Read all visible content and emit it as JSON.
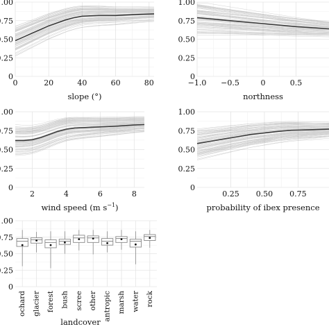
{
  "chart_data": [
    {
      "type": "line",
      "xlabel": "slope (°)",
      "ylabel": "",
      "xlim": [
        0,
        83
      ],
      "ylim": [
        0,
        1
      ],
      "xticks": [
        "0",
        "20",
        "40",
        "60",
        "80"
      ],
      "yticks": [
        "0",
        "0.25",
        "0.50",
        "0.75",
        "1.00"
      ],
      "grid": true,
      "series": [
        {
          "x": [
            0,
            5,
            10,
            15,
            20,
            25,
            30,
            35,
            40,
            45,
            50,
            55,
            60,
            65,
            70,
            75,
            83
          ],
          "y": [
            0.48,
            0.53,
            0.58,
            0.63,
            0.68,
            0.72,
            0.76,
            0.79,
            0.81,
            0.815,
            0.82,
            0.82,
            0.82,
            0.825,
            0.83,
            0.835,
            0.84
          ]
        }
      ]
    },
    {
      "type": "line",
      "xlabel": "northness",
      "ylabel": "",
      "xlim": [
        -1,
        1
      ],
      "ylim": [
        0,
        1
      ],
      "xticks": [
        "−1.0",
        "−0.5",
        "0",
        "0.5"
      ],
      "yticks": [
        "0",
        "0.25",
        "0.50",
        "0.75",
        "1.00"
      ],
      "grid": true,
      "series": [
        {
          "x": [
            -1,
            -0.75,
            -0.5,
            -0.25,
            0,
            0.25,
            0.5,
            0.75,
            1
          ],
          "y": [
            0.79,
            0.77,
            0.75,
            0.73,
            0.71,
            0.69,
            0.67,
            0.655,
            0.64
          ]
        }
      ]
    },
    {
      "type": "line",
      "xlabel": "wind speed (m s",
      "xlabel_sup": "−1",
      "xlabel_end": ")",
      "ylabel": "",
      "xlim": [
        1,
        8.6
      ],
      "ylim": [
        0,
        1
      ],
      "xticks": [
        "2",
        "4",
        "6",
        "8"
      ],
      "yticks": [
        "0",
        "0.25",
        "0.50",
        "0.75",
        "1.00"
      ],
      "grid": true,
      "series": [
        {
          "x": [
            1,
            1.5,
            2,
            2.5,
            3,
            3.5,
            4,
            4.5,
            5,
            6,
            7,
            8,
            8.6
          ],
          "y": [
            0.62,
            0.62,
            0.63,
            0.66,
            0.7,
            0.74,
            0.77,
            0.785,
            0.79,
            0.8,
            0.81,
            0.825,
            0.83
          ]
        }
      ]
    },
    {
      "type": "line",
      "xlabel": "probability of ibex presence",
      "ylabel": "",
      "xlim": [
        0.0,
        0.98
      ],
      "ylim": [
        0,
        1
      ],
      "xticks": [
        "0.25",
        "0.50",
        "0.75"
      ],
      "yticks": [
        "0",
        "0.25",
        "0.50",
        "0.75",
        "1.00"
      ],
      "grid": true,
      "series": [
        {
          "x": [
            0.0,
            0.1,
            0.2,
            0.3,
            0.4,
            0.5,
            0.6,
            0.7,
            0.8,
            0.9,
            0.98
          ],
          "y": [
            0.58,
            0.61,
            0.64,
            0.67,
            0.7,
            0.72,
            0.74,
            0.755,
            0.76,
            0.765,
            0.77
          ]
        }
      ]
    },
    {
      "type": "box",
      "xlabel": "landcover",
      "ylabel": "",
      "ylim": [
        0,
        1
      ],
      "yticks": [
        "0",
        "0.25",
        "0.50",
        "0.75",
        "1.00"
      ],
      "grid": true,
      "categories": [
        "ochard",
        "glacier",
        "forest",
        "bush",
        "scree",
        "other",
        "antropic",
        "marsh",
        "water",
        "rock"
      ],
      "boxes": [
        {
          "min": 0.31,
          "q1": 0.61,
          "median": 0.69,
          "q3": 0.73,
          "max": 0.86,
          "mean": 0.63
        },
        {
          "min": 0.52,
          "q1": 0.66,
          "median": 0.71,
          "q3": 0.74,
          "max": 0.83,
          "mean": 0.7
        },
        {
          "min": 0.28,
          "q1": 0.59,
          "median": 0.67,
          "q3": 0.71,
          "max": 0.84,
          "mean": 0.63
        },
        {
          "min": 0.5,
          "q1": 0.64,
          "median": 0.69,
          "q3": 0.72,
          "max": 0.84,
          "mean": 0.67
        },
        {
          "min": 0.55,
          "q1": 0.67,
          "median": 0.74,
          "q3": 0.78,
          "max": 0.86,
          "mean": 0.72
        },
        {
          "min": 0.49,
          "q1": 0.67,
          "median": 0.74,
          "q3": 0.77,
          "max": 0.86,
          "mean": 0.73
        },
        {
          "min": 0.52,
          "q1": 0.63,
          "median": 0.69,
          "q3": 0.73,
          "max": 0.84,
          "mean": 0.66
        },
        {
          "min": 0.56,
          "q1": 0.67,
          "median": 0.73,
          "q3": 0.76,
          "max": 0.86,
          "mean": 0.72
        },
        {
          "min": 0.34,
          "q1": 0.6,
          "median": 0.69,
          "q3": 0.72,
          "max": 0.84,
          "mean": 0.64
        },
        {
          "min": 0.59,
          "q1": 0.7,
          "median": 0.76,
          "q3": 0.79,
          "max": 0.86,
          "mean": 0.74
        }
      ]
    }
  ],
  "colors": {
    "panel_background": "#ffffff",
    "grid": "#e4e4e4",
    "ensemble_lines": "#9a9a9a",
    "mean_line": "#3a3a3a",
    "box_fill": "#ffffff",
    "box_stroke": "#888888"
  }
}
